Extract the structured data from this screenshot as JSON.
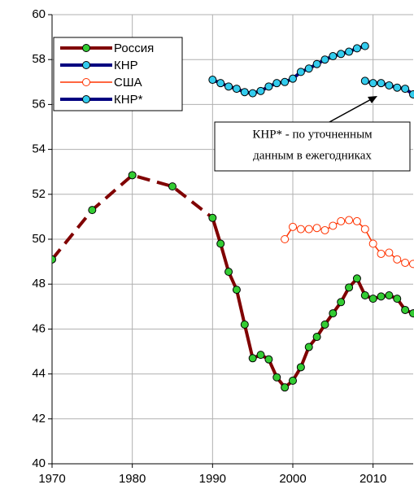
{
  "chart_data": {
    "type": "line",
    "xlim": [
      1970,
      2015
    ],
    "xticks": [
      1970,
      1980,
      1990,
      2000,
      2010
    ],
    "ylim": [
      40,
      60
    ],
    "yticks": [
      40,
      42,
      44,
      46,
      48,
      50,
      52,
      54,
      56,
      58,
      60
    ],
    "grid": true,
    "legend": "upper left",
    "annotation": [
      "КНР* - по уточненным",
      "данным в ежегодниках"
    ],
    "series": [
      {
        "name": "Россия",
        "line_color": "#800000",
        "marker_color": "#33cc33",
        "x": [
          1970,
          1975,
          1980,
          1985,
          1990,
          1991,
          1992,
          1993,
          1994,
          1995,
          1996,
          1997,
          1998,
          1999,
          2000,
          2001,
          2002,
          2003,
          2004,
          2005,
          2006,
          2007,
          2008,
          2009,
          2010,
          2011,
          2012,
          2013,
          2014,
          2015
        ],
        "values": [
          49.1,
          51.3,
          52.85,
          52.35,
          50.95,
          49.8,
          48.55,
          47.75,
          46.2,
          44.7,
          44.85,
          44.65,
          43.85,
          43.4,
          43.7,
          44.3,
          45.2,
          45.65,
          46.2,
          46.7,
          47.2,
          47.85,
          48.25,
          47.5,
          47.35,
          47.45,
          47.5,
          47.35,
          46.85,
          46.7
        ]
      },
      {
        "name": "КНР",
        "line_color": "#000080",
        "marker_color": "#33ccee",
        "x": [
          1990,
          1991,
          1992,
          1993,
          1994,
          1995,
          1996,
          1997,
          1998,
          1999,
          2000,
          2001,
          2002,
          2003,
          2004,
          2005,
          2006,
          2007,
          2008,
          2009
        ],
        "values": [
          57.1,
          56.95,
          56.8,
          56.7,
          56.55,
          56.5,
          56.6,
          56.8,
          56.95,
          57.0,
          57.15,
          57.45,
          57.6,
          57.8,
          58.0,
          58.15,
          58.25,
          58.35,
          58.5,
          58.6
        ]
      },
      {
        "name": "США",
        "line_color": "#ff3300",
        "marker_color": "#ffffff",
        "x": [
          1999,
          2000,
          2001,
          2002,
          2003,
          2004,
          2005,
          2006,
          2007,
          2008,
          2009,
          2010,
          2011,
          2012,
          2013,
          2014,
          2015
        ],
        "values": [
          50.0,
          50.55,
          50.45,
          50.45,
          50.5,
          50.4,
          50.6,
          50.8,
          50.85,
          50.8,
          50.45,
          49.8,
          49.35,
          49.4,
          49.1,
          48.95,
          48.9
        ]
      },
      {
        "name": "КНР*",
        "line_color": "#000080",
        "marker_color": "#33ccee",
        "x": [
          2009,
          2010,
          2011,
          2012,
          2013,
          2014,
          2015
        ],
        "values": [
          57.05,
          56.95,
          56.95,
          56.85,
          56.75,
          56.7,
          56.45
        ]
      }
    ]
  }
}
